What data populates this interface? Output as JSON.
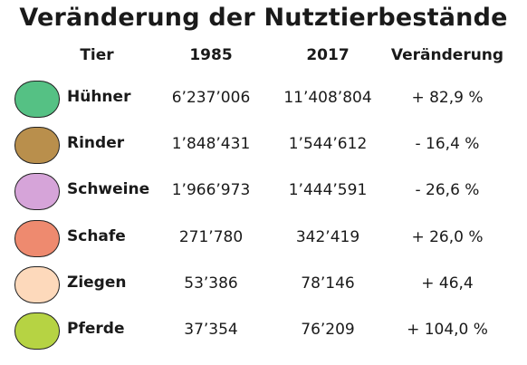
{
  "chart_data": {
    "type": "table",
    "title": "Veränderung der Nutztierbestände",
    "columns": [
      "Tier",
      "1985",
      "2017",
      "Veränderung"
    ],
    "rows": [
      {
        "animal": "Hühner",
        "y1985": "6’237’006",
        "y2017": "11’408’804",
        "change": "+ 82,9 %",
        "color": "#55c184"
      },
      {
        "animal": "Rinder",
        "y1985": "1’848’431",
        "y2017": "1’544’612",
        "change": "- 16,4 %",
        "color": "#b98f4c"
      },
      {
        "animal": "Schweine",
        "y1985": "1’966’973",
        "y2017": "1’444’591",
        "change": "- 26,6 %",
        "color": "#d6a4d9"
      },
      {
        "animal": "Schafe",
        "y1985": "271’780",
        "y2017": "342’419",
        "change": "+ 26,0 %",
        "color": "#ee8a6f"
      },
      {
        "animal": "Ziegen",
        "y1985": "53’386",
        "y2017": "78’146",
        "change": "+ 46,4",
        "color": "#fdd9bb"
      },
      {
        "animal": "Pferde",
        "y1985": "37’354",
        "y2017": "76’209",
        "change": "+ 104,0 %",
        "color": "#b6d343"
      }
    ]
  }
}
